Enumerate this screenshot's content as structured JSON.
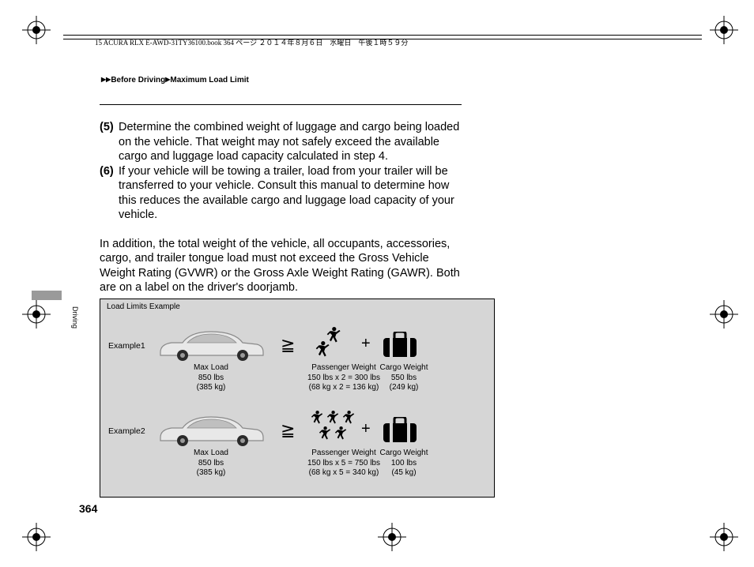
{
  "header": {
    "text": "15 ACURA RLX E-AWD-31TY36100.book  364 ページ  ２０１４年８月６日　水曜日　午後１時５９分"
  },
  "breadcrumb": {
    "seg1": "Before Driving",
    "seg2": "Maximum Load Limit"
  },
  "sidebar": {
    "section": "Driving"
  },
  "page_number": "364",
  "steps": {
    "s5_num": "(5)",
    "s5": "Determine the combined weight of luggage and cargo being loaded on the vehicle. That weight may not safely exceed the available cargo and luggage load capacity calculated in step 4.",
    "s6_num": "(6)",
    "s6": "If your vehicle will be towing a trailer, load from your trailer will be transferred to your vehicle. Consult this manual to determine how this reduces the available cargo and luggage load capacity of your vehicle."
  },
  "paragraph": "In addition, the total weight of the vehicle, all occupants, accessories, cargo, and trailer tongue load must not exceed the Gross Vehicle Weight Rating (GVWR) or the Gross Axle Weight Rating (GAWR). Both are on a label on the driver's doorjamb.",
  "load_box": {
    "title": "Load Limits Example",
    "example1": {
      "label": "Example1",
      "passenger_count": 2,
      "max_load_title": "Max Load",
      "max_load_lbs": "850 lbs",
      "max_load_kg": "(385 kg)",
      "pass_title": "Passenger Weight",
      "pass_lbs": "150 lbs x 2 = 300 lbs",
      "pass_kg": "(68 kg x 2 = 136 kg)",
      "cargo_title": "Cargo Weight",
      "cargo_lbs": "550 lbs",
      "cargo_kg": "(249 kg)"
    },
    "example2": {
      "label": "Example2",
      "passenger_count": 5,
      "max_load_title": "Max Load",
      "max_load_lbs": "850 lbs",
      "max_load_kg": "(385 kg)",
      "pass_title": "Passenger Weight",
      "pass_lbs": "150 lbs x 5 = 750 lbs",
      "pass_kg": "(68 kg x 5 = 340 kg)",
      "cargo_title": "Cargo Weight",
      "cargo_lbs": "100 lbs",
      "cargo_kg": "(45 kg)"
    },
    "colors": {
      "box_bg": "#d6d6d6",
      "car_body": "#e8e8e8",
      "car_stroke": "#8a8a8a",
      "icon_fill": "#000000"
    }
  }
}
